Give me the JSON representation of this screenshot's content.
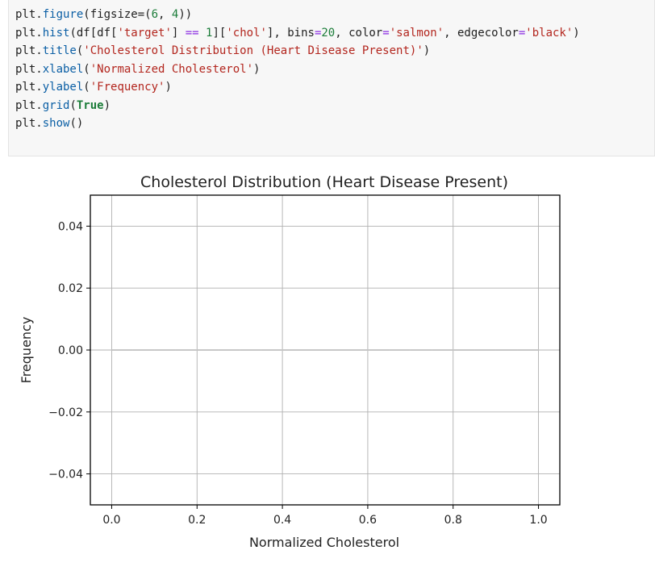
{
  "code_cell": {
    "lines": [
      [
        [
          "plt.",
          ""
        ],
        [
          "figure",
          "kw"
        ],
        [
          "(figsize=(",
          ""
        ],
        [
          "6",
          "num"
        ],
        [
          ", ",
          ""
        ],
        [
          "4",
          "num"
        ],
        [
          "))",
          ""
        ]
      ],
      [
        [
          "plt.",
          ""
        ],
        [
          "hist",
          "kw"
        ],
        [
          "(df[df[",
          ""
        ],
        [
          "'target'",
          "str"
        ],
        [
          "] ",
          ""
        ],
        [
          "==",
          "op"
        ],
        [
          " ",
          ""
        ],
        [
          "1",
          "num"
        ],
        [
          "][",
          ""
        ],
        [
          "'chol'",
          "str"
        ],
        [
          "], bins",
          ""
        ],
        [
          "=",
          "op"
        ],
        [
          "20",
          "num"
        ],
        [
          ", color",
          ""
        ],
        [
          "=",
          "op"
        ],
        [
          "'salmon'",
          "str"
        ],
        [
          ", edgecolor",
          ""
        ],
        [
          "=",
          "op"
        ],
        [
          "'black'",
          "str"
        ],
        [
          ")",
          ""
        ]
      ],
      [
        [
          "plt.",
          ""
        ],
        [
          "title",
          "kw"
        ],
        [
          "(",
          ""
        ],
        [
          "'Cholesterol Distribution (Heart Disease Present)'",
          "str"
        ],
        [
          ")",
          ""
        ]
      ],
      [
        [
          "plt.",
          ""
        ],
        [
          "xlabel",
          "kw"
        ],
        [
          "(",
          ""
        ],
        [
          "'Normalized Cholesterol'",
          "str"
        ],
        [
          ")",
          ""
        ]
      ],
      [
        [
          "plt.",
          ""
        ],
        [
          "ylabel",
          "kw"
        ],
        [
          "(",
          ""
        ],
        [
          "'Frequency'",
          "str"
        ],
        [
          ")",
          ""
        ]
      ],
      [
        [
          "plt.",
          ""
        ],
        [
          "grid",
          "kw"
        ],
        [
          "(",
          ""
        ],
        [
          "True",
          "bold"
        ],
        [
          ")",
          ""
        ]
      ],
      [
        [
          "plt.",
          ""
        ],
        [
          "show",
          "kw"
        ],
        [
          "()",
          ""
        ]
      ]
    ]
  },
  "chart_data": {
    "type": "bar",
    "title": "Cholesterol Distribution (Heart Disease Present)",
    "xlabel": "Normalized Cholesterol",
    "ylabel": "Frequency",
    "xlim": [
      -0.05,
      1.05
    ],
    "ylim": [
      -0.05,
      0.05
    ],
    "xticks": [
      0.0,
      0.2,
      0.4,
      0.6,
      0.8,
      1.0
    ],
    "xtick_labels": [
      "0.0",
      "0.2",
      "0.4",
      "0.6",
      "0.8",
      "1.0"
    ],
    "yticks": [
      0.04,
      0.02,
      0.0,
      -0.02,
      -0.04
    ],
    "ytick_labels": [
      "0.04",
      "0.02",
      "0.00",
      "−0.02",
      "−0.04"
    ],
    "grid": true,
    "bins": 20,
    "bin_range": [
      0.0,
      1.0
    ],
    "values": [
      0,
      0,
      0,
      0,
      0,
      0,
      0,
      0,
      0,
      0,
      0,
      0,
      0,
      0,
      0,
      0,
      0,
      0,
      0,
      0
    ],
    "bar_color": "#fa8072",
    "edge_color": "#000000"
  }
}
